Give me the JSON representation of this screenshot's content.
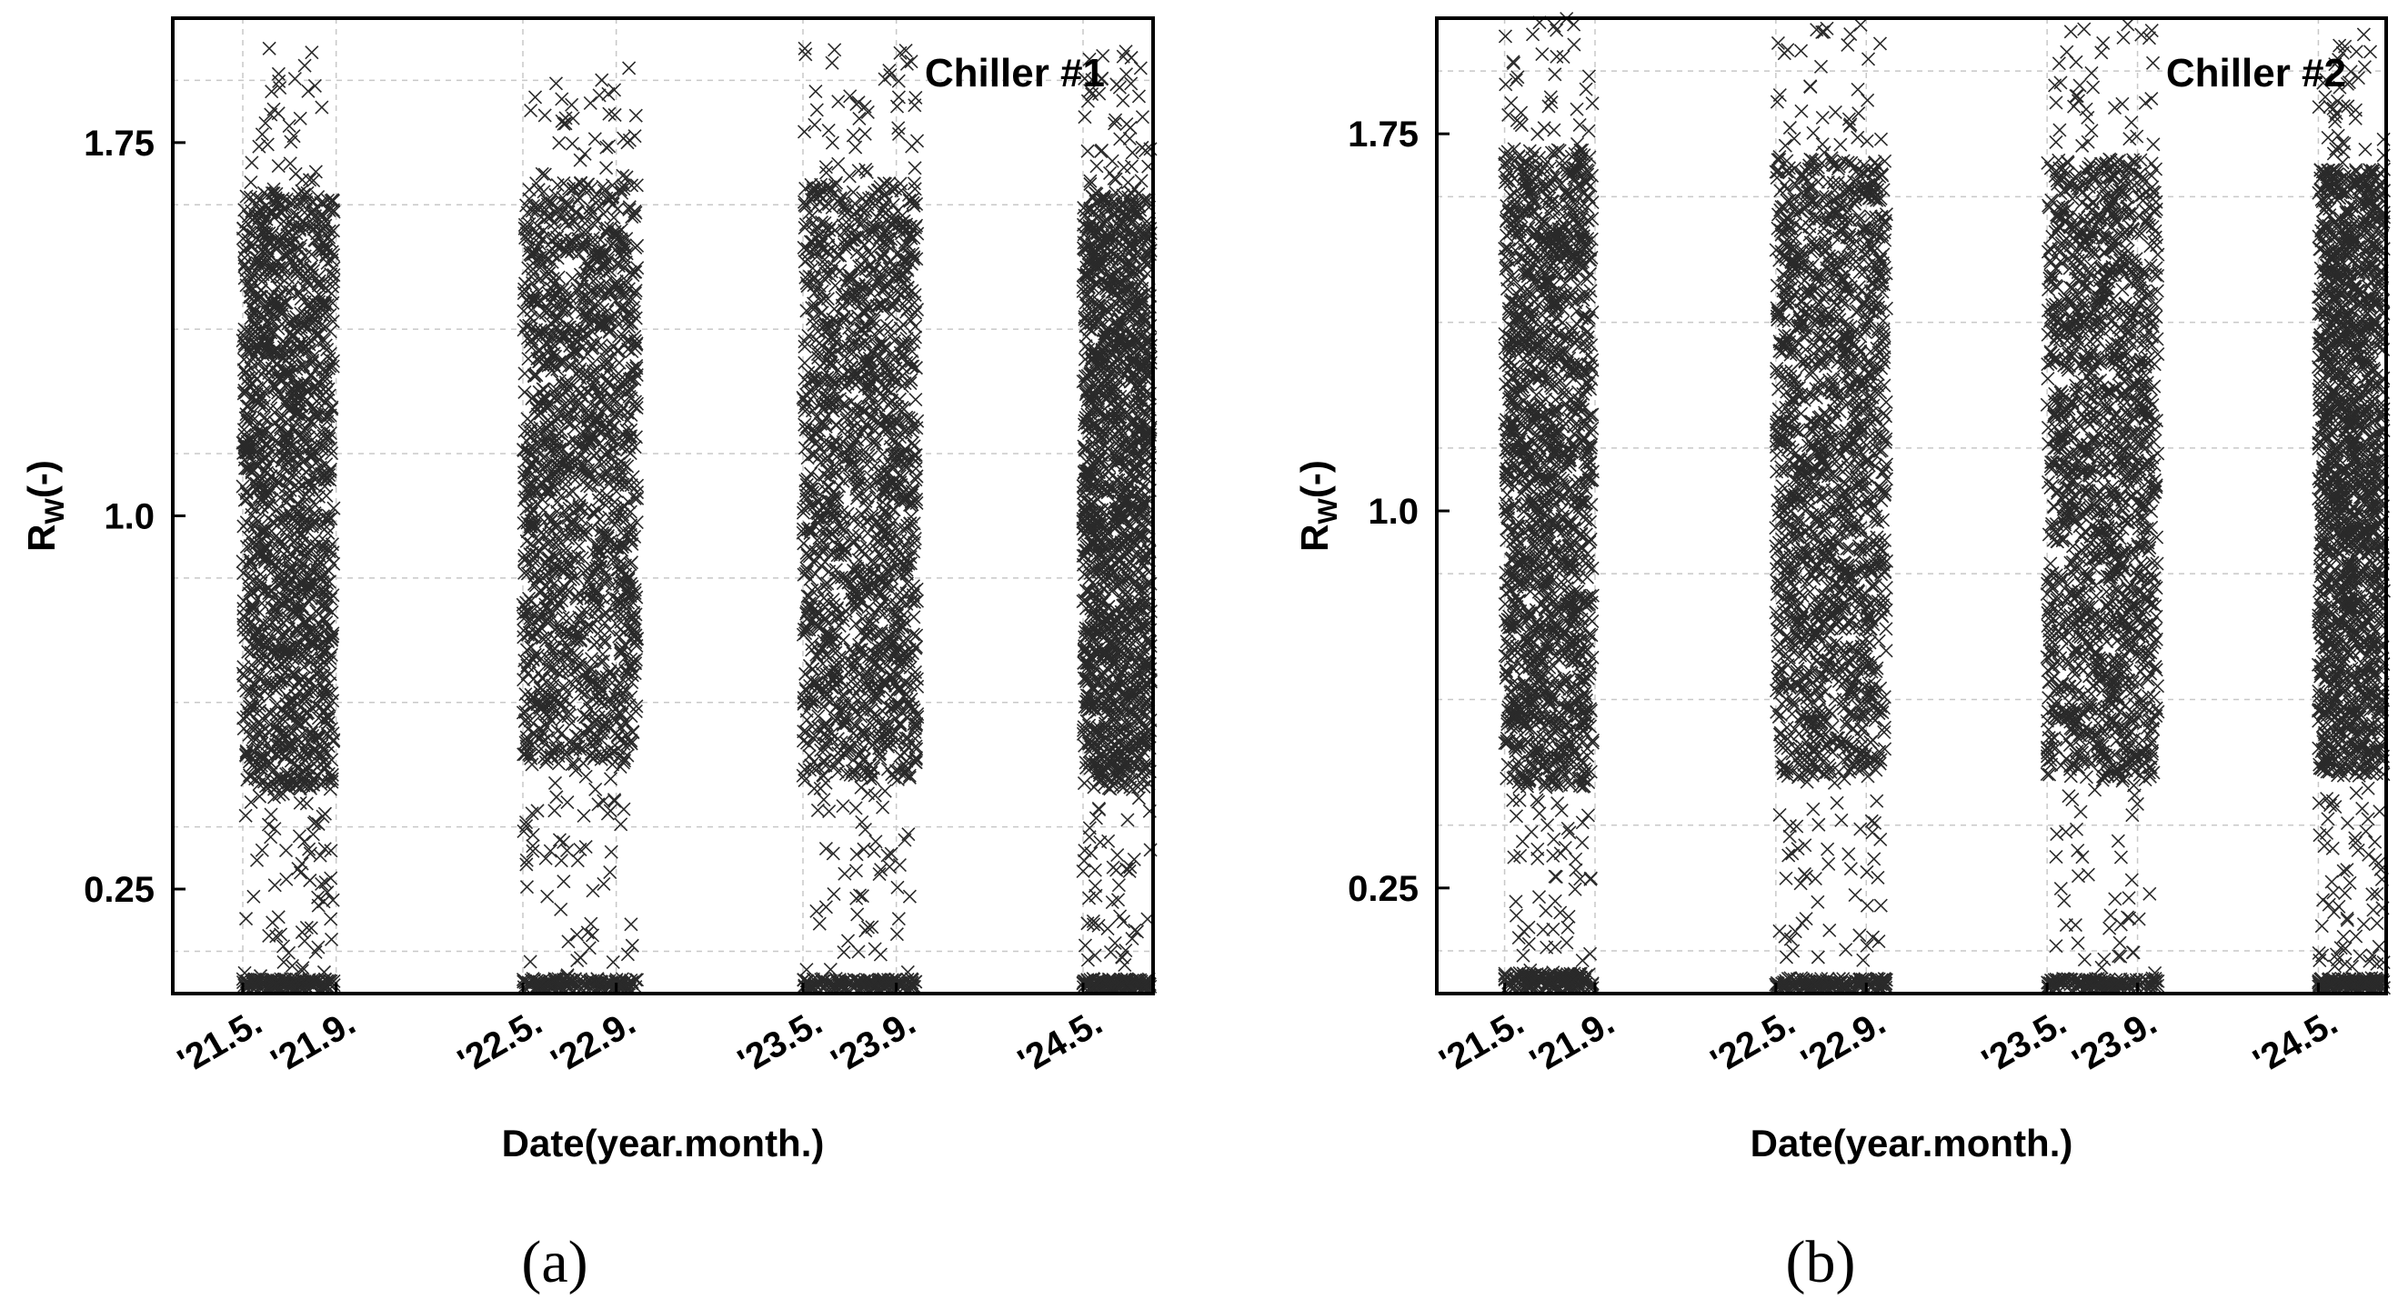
{
  "figure": {
    "panels": [
      "(a)",
      "(b)"
    ]
  },
  "chart_data": [
    {
      "type": "scatter",
      "title": "Chiller #1",
      "xlabel": "Date(year.month.)",
      "ylabel_main": "R",
      "ylabel_sub": "W",
      "ylabel_suffix": "(-)",
      "xticks": [
        "'21.5.",
        "'21.9.",
        "'22.5.",
        "'22.9.",
        "'23.5.",
        "'23.9.",
        "'24.5."
      ],
      "xtick_dates": [
        "2021-05",
        "2021-09",
        "2022-05",
        "2022-09",
        "2023-05",
        "2023-09",
        "2024-05"
      ],
      "xlim": [
        "2021-02",
        "2024-08"
      ],
      "yticks": [
        "0.25",
        "1.0",
        "1.75"
      ],
      "ytick_values": [
        0.25,
        1.0,
        1.75
      ],
      "ylim": [
        0.04,
        2.0
      ],
      "grid": true,
      "marker": "x",
      "series": [
        {
          "clusters": [
            {
              "x": [
                "2021-05",
                "2021-08"
              ],
              "y": [
                0.05,
                1.95
              ],
              "dense": [
                [
                  0.45,
                  1.65
                ],
                [
                  0.05,
                  0.07
                ]
              ]
            },
            {
              "x": [
                "2022-05",
                "2022-09"
              ],
              "y": [
                0.05,
                1.9
              ],
              "dense": [
                [
                  0.5,
                  1.67
                ],
                [
                  0.05,
                  0.07
                ]
              ]
            },
            {
              "x": [
                "2023-05",
                "2023-09"
              ],
              "y": [
                0.05,
                1.95
              ],
              "dense": [
                [
                  0.47,
                  1.67
                ],
                [
                  0.05,
                  0.07
                ]
              ]
            },
            {
              "x": [
                "2024-05",
                "2024-07"
              ],
              "y": [
                0.08,
                1.95
              ],
              "dense": [
                [
                  0.45,
                  1.65
                ],
                [
                  0.05,
                  0.07
                ]
              ]
            }
          ]
        }
      ]
    },
    {
      "type": "scatter",
      "title": "Chiller #2",
      "xlabel": "Date(year.month.)",
      "ylabel_main": "R",
      "ylabel_sub": "W",
      "ylabel_suffix": "(-)",
      "xticks": [
        "'21.5.",
        "'21.9.",
        "'22.5.",
        "'22.9.",
        "'23.5.",
        "'23.9.",
        "'24.5."
      ],
      "xtick_dates": [
        "2021-05",
        "2021-09",
        "2022-05",
        "2022-09",
        "2023-05",
        "2023-09",
        "2024-05"
      ],
      "xlim": [
        "2021-02",
        "2024-08"
      ],
      "yticks": [
        "0.25",
        "1.0",
        "1.75"
      ],
      "ytick_values": [
        0.25,
        1.0,
        1.75
      ],
      "ylim": [
        0.04,
        1.98
      ],
      "grid": true,
      "marker": "x",
      "series": [
        {
          "clusters": [
            {
              "x": [
                "2021-05",
                "2021-08"
              ],
              "y": [
                0.05,
                1.98
              ],
              "dense": [
                [
                  0.45,
                  1.72
                ],
                [
                  0.05,
                  0.08
                ]
              ]
            },
            {
              "x": [
                "2022-05",
                "2022-09"
              ],
              "y": [
                0.05,
                1.97
              ],
              "dense": [
                [
                  0.47,
                  1.7
                ],
                [
                  0.05,
                  0.07
                ]
              ]
            },
            {
              "x": [
                "2023-05",
                "2023-09"
              ],
              "y": [
                0.05,
                1.98
              ],
              "dense": [
                [
                  0.47,
                  1.7
                ],
                [
                  0.05,
                  0.07
                ]
              ]
            },
            {
              "x": [
                "2024-05",
                "2024-07"
              ],
              "y": [
                0.05,
                1.95
              ],
              "dense": [
                [
                  0.47,
                  1.68
                ],
                [
                  0.05,
                  0.07
                ]
              ]
            }
          ]
        }
      ]
    }
  ]
}
